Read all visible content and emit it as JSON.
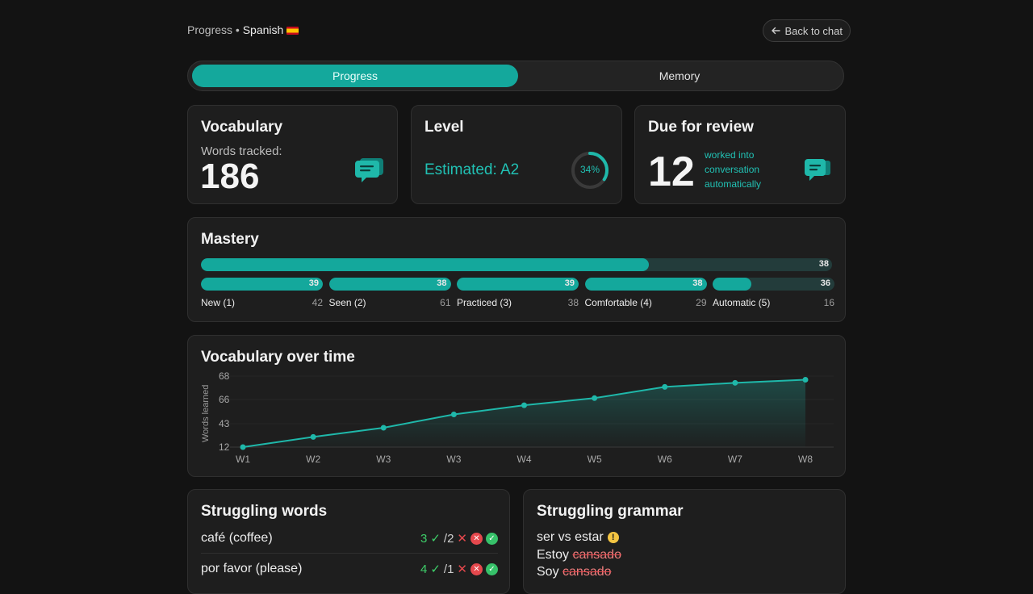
{
  "header": {
    "crumb_prefix": "Progress •",
    "crumb_language": "Spanish",
    "back_label": "Back to chat"
  },
  "tabs": [
    {
      "label": "Progress",
      "active": true
    },
    {
      "label": "Memory",
      "active": false
    }
  ],
  "vocabulary_card": {
    "title": "Vocabulary",
    "subtitle": "Words tracked:",
    "count": "186",
    "icon": "chat-bubbles-icon"
  },
  "level_card": {
    "title": "Level",
    "estimate": "Estimated: A2",
    "progress_label": "34%",
    "progress_fraction": 0.34
  },
  "review_card": {
    "title": "Due for review",
    "count": "12",
    "note": "worked into conversation automatically",
    "icon": "chat-bubble-icon"
  },
  "mastery": {
    "title": "Mastery",
    "overall": {
      "count": "38",
      "fraction": 0.71
    },
    "levels": [
      {
        "label": "New (1)",
        "bar_count": "39",
        "total": "42",
        "fraction": 1.0
      },
      {
        "label": "Seen (2)",
        "bar_count": "38",
        "total": "61",
        "fraction": 1.0
      },
      {
        "label": "Practiced (3)",
        "bar_count": "39",
        "total": "38",
        "fraction": 1.0
      },
      {
        "label": "Comfortable (4)",
        "bar_count": "38",
        "total": "29",
        "fraction": 1.0
      },
      {
        "label": "Automatic (5)",
        "bar_count": "36",
        "total": "16",
        "fraction": 0.32
      }
    ]
  },
  "chart_data": {
    "type": "area",
    "title": "Vocabulary over time",
    "ylabel": "Words learned",
    "xlabel": "",
    "categories": [
      "W1",
      "W2",
      "W3",
      "W3",
      "W4",
      "W5",
      "W6",
      "W7",
      "W8"
    ],
    "y_ticks": [
      "68",
      "66",
      "43",
      "12"
    ],
    "series": [
      {
        "values": [
          12,
          22,
          31,
          44,
          53,
          60,
          71,
          75,
          78
        ]
      }
    ],
    "ylim": [
      12,
      80
    ],
    "grid": true,
    "accent": "#1fb8aa"
  },
  "struggling_words": {
    "title": "Struggling words",
    "items": [
      {
        "word": "café (coffee)",
        "correct": "3",
        "wrong": "2"
      },
      {
        "word": "por favor (please)",
        "correct": "4",
        "wrong": "1"
      }
    ]
  },
  "struggling_grammar": {
    "title": "Struggling grammar",
    "topic": "ser vs estar",
    "examples": [
      {
        "prefix": "Estoy",
        "struck": "cansado"
      },
      {
        "prefix": "Soy",
        "struck": "cansado"
      }
    ]
  },
  "colors": {
    "accent": "#14a89c",
    "background": "#131313",
    "card": "#1e1e1e"
  }
}
